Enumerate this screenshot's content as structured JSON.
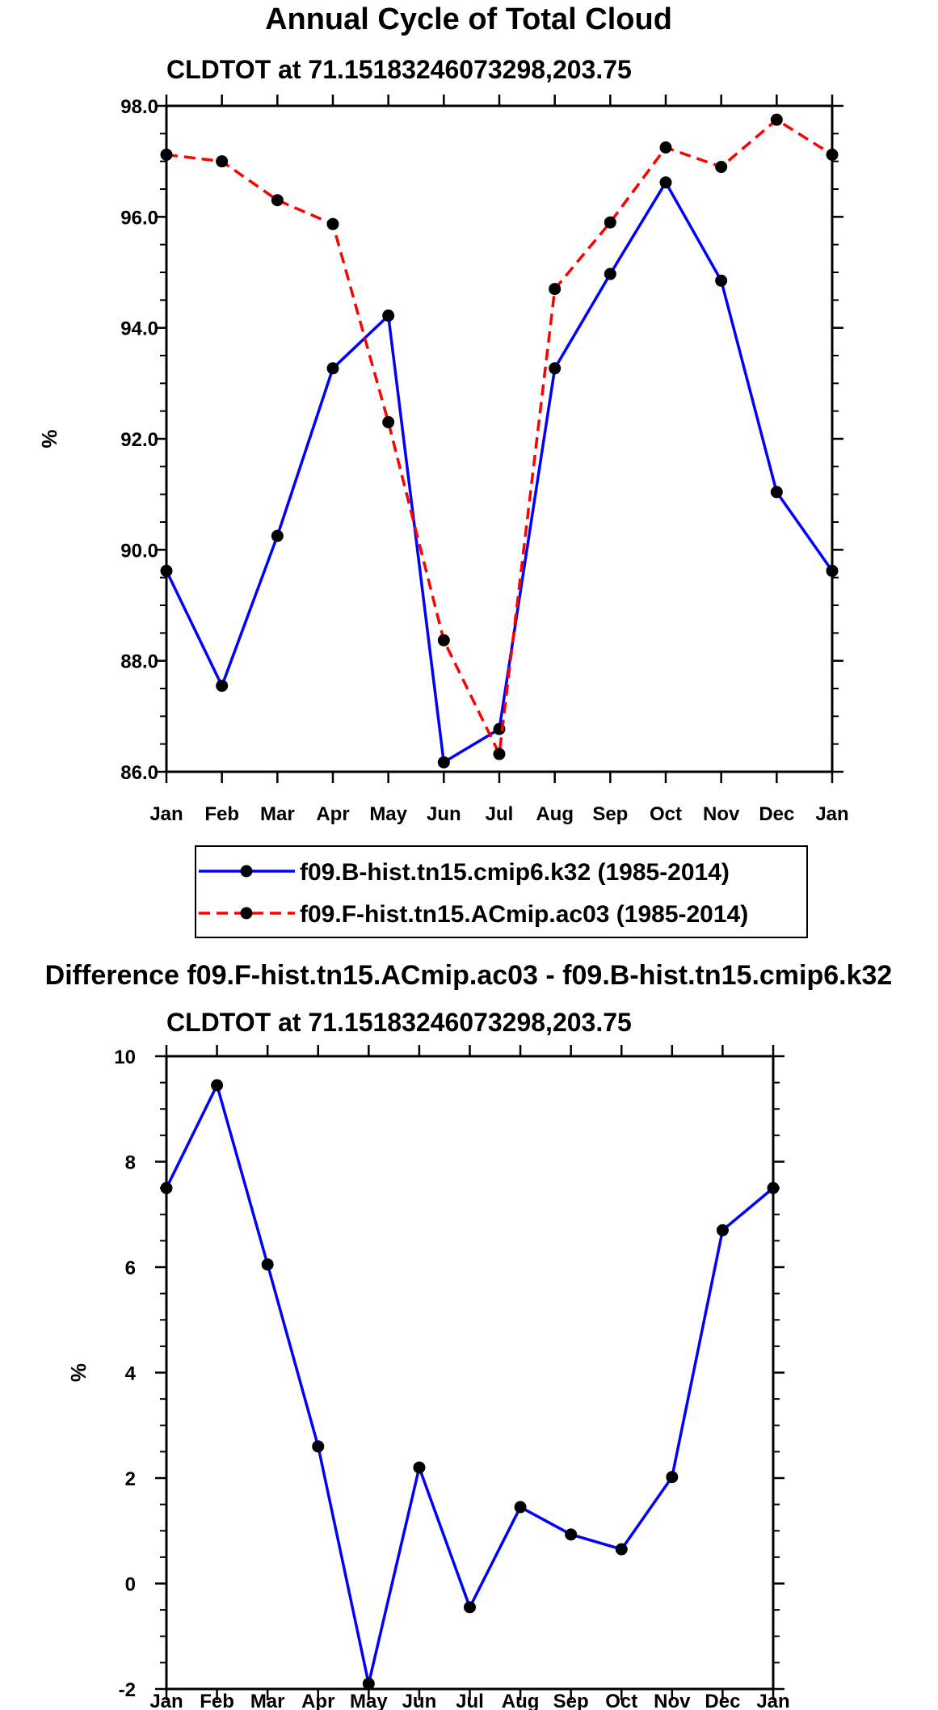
{
  "chart_data": [
    {
      "type": "line",
      "title": "Annual Cycle of Total Cloud",
      "subtitle": "CLDTOT at 71.15183246073298,203.75",
      "xlabel": "",
      "ylabel": "%",
      "categories": [
        "Jan",
        "Feb",
        "Mar",
        "Apr",
        "May",
        "Jun",
        "Jul",
        "Aug",
        "Sep",
        "Oct",
        "Nov",
        "Dec",
        "Jan"
      ],
      "ylim": [
        86.0,
        98.0
      ],
      "yticks": [
        "86.0",
        "88.0",
        "90.0",
        "92.0",
        "94.0",
        "96.0",
        "98.0"
      ],
      "legend_position": "bottom",
      "series": [
        {
          "name": "f09.B-hist.tn15.cmip6.k32 (1985-2014)",
          "color": "#0000ff",
          "dashed": false,
          "values": [
            89.62,
            87.55,
            90.25,
            93.27,
            94.22,
            86.17,
            86.77,
            93.27,
            94.97,
            96.62,
            94.85,
            91.04,
            89.62
          ]
        },
        {
          "name": "f09.F-hist.tn15.ACmip.ac03 (1985-2014)",
          "color": "#ff0000",
          "dashed": true,
          "values": [
            97.12,
            97.0,
            96.3,
            95.87,
            92.3,
            88.37,
            86.32,
            94.7,
            95.9,
            97.25,
            96.9,
            97.75,
            97.12
          ]
        }
      ]
    },
    {
      "type": "line",
      "title": "Difference f09.F-hist.tn15.ACmip.ac03 - f09.B-hist.tn15.cmip6.k32",
      "subtitle": "CLDTOT at 71.15183246073298,203.75",
      "xlabel": "",
      "ylabel": "%",
      "categories": [
        "Jan",
        "Feb",
        "Mar",
        "Apr",
        "May",
        "Jun",
        "Jul",
        "Aug",
        "Sep",
        "Oct",
        "Nov",
        "Dec",
        "Jan"
      ],
      "ylim": [
        -2,
        10
      ],
      "yticks": [
        "-2",
        "0",
        "2",
        "4",
        "6",
        "8",
        "10"
      ],
      "series": [
        {
          "color": "#0000ff",
          "dashed": false,
          "values": [
            7.5,
            9.45,
            6.05,
            2.6,
            -1.9,
            2.2,
            -0.45,
            1.45,
            0.93,
            0.65,
            2.02,
            6.7,
            7.5
          ]
        }
      ]
    }
  ]
}
